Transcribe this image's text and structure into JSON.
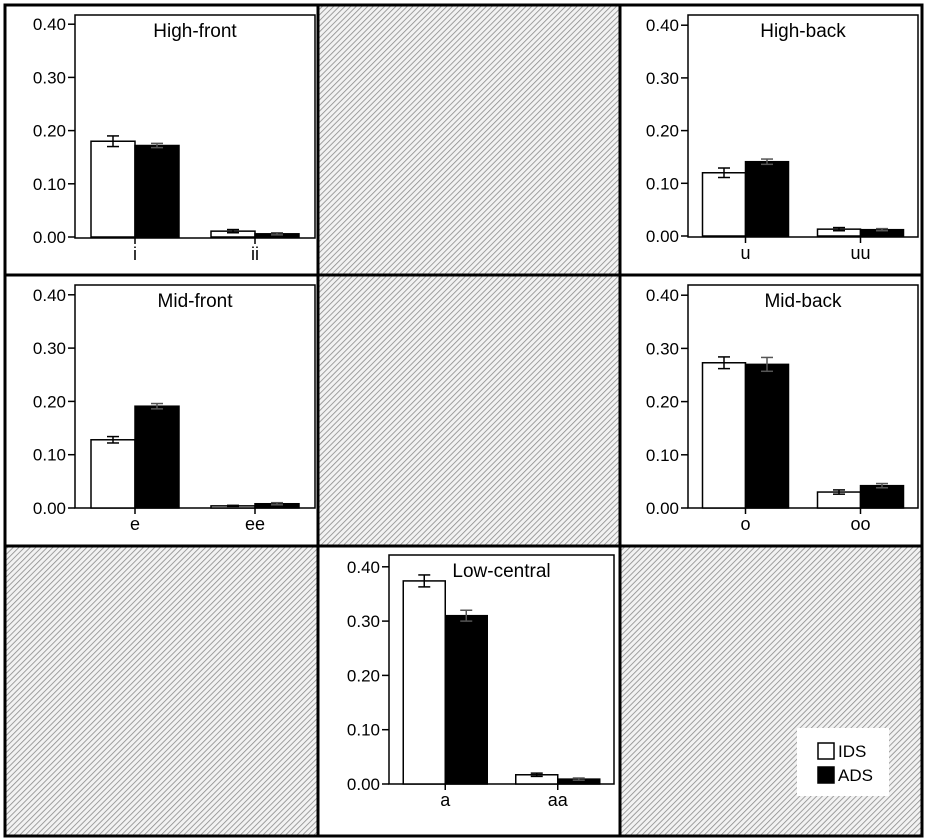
{
  "legend": {
    "placement": "bottom-right cell",
    "entries": [
      {
        "label": "IDS",
        "color": "#ffffff"
      },
      {
        "label": "ADS",
        "color": "#000000"
      }
    ]
  },
  "hatch_cells": [
    "row1-col2",
    "row2-col2",
    "row3-col1",
    "row3-col3"
  ],
  "chart_data": [
    {
      "type": "bar",
      "title": "High-front",
      "grid": "off",
      "categories": [
        "i",
        "ii"
      ],
      "ylim": [
        0,
        0.4
      ],
      "yticks": [
        "0.00",
        "0.10",
        "0.20",
        "0.30",
        "0.40"
      ],
      "series": [
        {
          "name": "IDS",
          "color": "#ffffff",
          "values": [
            0.18,
            0.011
          ],
          "error": [
            0.01,
            0.003
          ]
        },
        {
          "name": "ADS",
          "color": "#000000",
          "values": [
            0.172,
            0.006
          ],
          "error": [
            0.004,
            0.002
          ]
        }
      ]
    },
    {
      "type": "bar",
      "title": "High-back",
      "grid": "off",
      "categories": [
        "u",
        "uu"
      ],
      "ylim": [
        0,
        0.4
      ],
      "yticks": [
        "0.00",
        "0.10",
        "0.20",
        "0.30",
        "0.40"
      ],
      "series": [
        {
          "name": "IDS",
          "color": "#ffffff",
          "values": [
            0.12,
            0.013
          ],
          "error": [
            0.009,
            0.003
          ]
        },
        {
          "name": "ADS",
          "color": "#000000",
          "values": [
            0.141,
            0.012
          ],
          "error": [
            0.005,
            0.002
          ]
        }
      ]
    },
    {
      "type": "bar",
      "title": "Mid-front",
      "grid": "off",
      "categories": [
        "e",
        "ee"
      ],
      "ylim": [
        0,
        0.4
      ],
      "yticks": [
        "0.00",
        "0.10",
        "0.20",
        "0.30",
        "0.40"
      ],
      "series": [
        {
          "name": "IDS",
          "color": "#ffffff",
          "values": [
            0.128,
            0.004
          ],
          "error": [
            0.006,
            0.001
          ]
        },
        {
          "name": "ADS",
          "color": "#000000",
          "values": [
            0.191,
            0.008
          ],
          "error": [
            0.005,
            0.002
          ]
        }
      ]
    },
    {
      "type": "bar",
      "title": "Mid-back",
      "grid": "off",
      "categories": [
        "o",
        "oo"
      ],
      "ylim": [
        0,
        0.4
      ],
      "yticks": [
        "0.00",
        "0.10",
        "0.20",
        "0.30",
        "0.40"
      ],
      "series": [
        {
          "name": "IDS",
          "color": "#ffffff",
          "values": [
            0.273,
            0.03
          ],
          "error": [
            0.011,
            0.004
          ]
        },
        {
          "name": "ADS",
          "color": "#000000",
          "values": [
            0.27,
            0.042
          ],
          "error": [
            0.013,
            0.004
          ]
        }
      ]
    },
    {
      "type": "bar",
      "title": "Low-central",
      "grid": "off",
      "categories": [
        "a",
        "aa"
      ],
      "ylim": [
        0,
        0.4
      ],
      "yticks": [
        "0.00",
        "0.10",
        "0.20",
        "0.30",
        "0.40"
      ],
      "series": [
        {
          "name": "IDS",
          "color": "#ffffff",
          "values": [
            0.374,
            0.017
          ],
          "error": [
            0.011,
            0.003
          ]
        },
        {
          "name": "ADS",
          "color": "#000000",
          "values": [
            0.31,
            0.009
          ],
          "error": [
            0.01,
            0.002
          ]
        }
      ]
    }
  ]
}
